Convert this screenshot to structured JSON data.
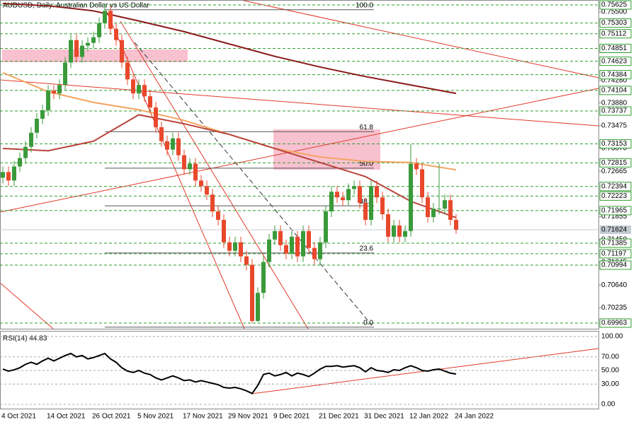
{
  "chart_data": {
    "type": "candlestick",
    "title": "AUDUSD, Daily: Australian Dollar vs US Dollar",
    "categories": [
      "4 Oct 2021",
      null,
      null,
      null,
      null,
      null,
      null,
      null,
      "14 Oct 2021",
      null,
      null,
      null,
      null,
      null,
      null,
      null,
      "26 Oct 2021",
      null,
      null,
      null,
      null,
      null,
      null,
      null,
      "5 Nov 2021",
      null,
      null,
      null,
      null,
      null,
      null,
      null,
      "17 Nov 2021",
      null,
      null,
      null,
      null,
      null,
      null,
      null,
      "29 Nov 2021",
      null,
      null,
      null,
      null,
      null,
      null,
      null,
      "9 Dec 2021",
      null,
      null,
      null,
      null,
      null,
      null,
      null,
      "21 Dec 2021",
      null,
      null,
      null,
      null,
      null,
      null,
      null,
      "31 Dec 2021",
      null,
      null,
      null,
      null,
      null,
      null,
      null,
      "12 Jan 2022",
      null,
      null,
      null,
      null,
      null,
      null,
      null,
      "24 Jan 2022"
    ],
    "open": [
      0.7255,
      0.7265,
      0.725,
      0.7275,
      0.729,
      0.731,
      0.7335,
      0.736,
      0.7375,
      0.741,
      0.7405,
      0.742,
      0.746,
      0.75,
      0.747,
      0.749,
      0.7495,
      0.7505,
      0.753,
      0.7552,
      0.752,
      0.75,
      0.746,
      0.743,
      0.7405,
      0.742,
      0.74,
      0.738,
      0.7345,
      0.732,
      0.7305,
      0.7325,
      0.7295,
      0.727,
      0.728,
      0.725,
      0.724,
      0.7225,
      0.7195,
      0.718,
      0.714,
      0.7125,
      0.714,
      0.7115,
      0.71,
      0.7,
      0.705,
      0.7105,
      0.7145,
      0.716,
      0.7135,
      0.712,
      0.715,
      0.7115,
      0.716,
      0.713,
      0.711,
      0.714,
      0.7195,
      0.723,
      0.722,
      0.7215,
      0.7235,
      0.724,
      0.721,
      0.718,
      0.724,
      0.722,
      0.719,
      0.715,
      0.717,
      0.715,
      0.716,
      0.728,
      0.727,
      0.722,
      0.7185,
      0.72,
      0.72,
      0.7215,
      0.718
    ],
    "high": [
      0.7275,
      0.7275,
      0.7285,
      0.73,
      0.732,
      0.7345,
      0.737,
      0.7385,
      0.742,
      0.742,
      0.743,
      0.747,
      0.751,
      0.751,
      0.75,
      0.7505,
      0.7515,
      0.754,
      0.7562,
      0.7562,
      0.753,
      0.751,
      0.747,
      0.744,
      0.743,
      0.743,
      0.741,
      0.739,
      0.7355,
      0.733,
      0.7335,
      0.7335,
      0.7305,
      0.729,
      0.729,
      0.726,
      0.725,
      0.7235,
      0.7205,
      0.719,
      0.715,
      0.715,
      0.715,
      0.7125,
      0.711,
      0.706,
      0.7115,
      0.7155,
      0.717,
      0.717,
      0.7145,
      0.716,
      0.716,
      0.717,
      0.717,
      0.714,
      0.715,
      0.7205,
      0.724,
      0.724,
      0.723,
      0.7245,
      0.725,
      0.725,
      0.722,
      0.725,
      0.725,
      0.723,
      0.72,
      0.718,
      0.718,
      0.717,
      0.7315,
      0.729,
      0.728,
      0.723,
      0.721,
      0.728,
      0.7225,
      0.7225,
      0.719
    ],
    "low": [
      0.7245,
      0.724,
      0.724,
      0.7265,
      0.728,
      0.73,
      0.7325,
      0.735,
      0.7365,
      0.7395,
      0.7395,
      0.741,
      0.745,
      0.746,
      0.746,
      0.748,
      0.7485,
      0.7495,
      0.752,
      0.751,
      0.749,
      0.745,
      0.742,
      0.7395,
      0.7395,
      0.739,
      0.737,
      0.7335,
      0.731,
      0.7295,
      0.7295,
      0.7285,
      0.726,
      0.726,
      0.724,
      0.723,
      0.7215,
      0.7185,
      0.717,
      0.713,
      0.7115,
      0.7115,
      0.7105,
      0.709,
      0.6996,
      0.6998,
      0.704,
      0.7095,
      0.7135,
      0.7125,
      0.711,
      0.711,
      0.7105,
      0.7105,
      0.712,
      0.71,
      0.71,
      0.713,
      0.7185,
      0.721,
      0.7205,
      0.7205,
      0.7225,
      0.72,
      0.717,
      0.717,
      0.721,
      0.718,
      0.714,
      0.714,
      0.714,
      0.714,
      0.715,
      0.726,
      0.721,
      0.7175,
      0.7175,
      0.719,
      0.719,
      0.717,
      0.7155
    ],
    "close": [
      0.7265,
      0.725,
      0.7275,
      0.729,
      0.731,
      0.7335,
      0.736,
      0.7375,
      0.741,
      0.7405,
      0.742,
      0.746,
      0.75,
      0.747,
      0.749,
      0.7495,
      0.7505,
      0.753,
      0.7552,
      0.752,
      0.75,
      0.746,
      0.743,
      0.7405,
      0.742,
      0.74,
      0.738,
      0.7345,
      0.732,
      0.7305,
      0.7325,
      0.7295,
      0.727,
      0.728,
      0.725,
      0.724,
      0.7225,
      0.7195,
      0.718,
      0.714,
      0.7125,
      0.714,
      0.7115,
      0.71,
      0.7,
      0.705,
      0.7105,
      0.7145,
      0.716,
      0.7135,
      0.712,
      0.715,
      0.7115,
      0.716,
      0.713,
      0.711,
      0.714,
      0.7195,
      0.723,
      0.722,
      0.7215,
      0.7235,
      0.724,
      0.721,
      0.718,
      0.724,
      0.722,
      0.719,
      0.715,
      0.717,
      0.715,
      0.716,
      0.728,
      0.727,
      0.722,
      0.7185,
      0.72,
      0.72,
      0.7215,
      0.718,
      0.71624
    ],
    "up_color": "#3a9a3a",
    "down_color": "#e8482c",
    "ylim": [
      0.69862,
      0.75713
    ],
    "yticks": [
      {
        "value": 0.755,
        "label": "0.75500"
      },
      {
        "value": 0.7428,
        "label": "0.74280"
      },
      {
        "value": 0.7388,
        "label": "0.73880"
      },
      0.73475,
      {
        "value": 0.7307,
        "label": "0.73070"
      },
      0.72665,
      0.71855,
      {
        "value": 0.7145,
        "label": "0.71450"
      },
      0.71045,
      {
        "value": 0.7064,
        "label": "0.70640"
      },
      0.70235
    ],
    "levels": [
      0.75625,
      0.75303,
      0.75112,
      0.74851,
      0.74623,
      0.74384,
      0.74104,
      0.73737,
      0.73153,
      0.72815,
      0.72394,
      0.72223,
      0.71965,
      0.71385,
      0.71197,
      0.70994,
      0.69963
    ],
    "level_color": "#2e9e2e",
    "current_price": 0.71624,
    "current_color": "#c3cbd3",
    "moving_averages": [
      {
        "color": "#8b1a1a",
        "x": [
          0,
          8,
          16,
          24,
          32,
          40,
          48,
          56,
          64,
          72,
          80
        ],
        "values": [
          0.7565,
          0.7561,
          0.7552,
          0.7534,
          0.7515,
          0.7493,
          0.7471,
          0.7452,
          0.7435,
          0.742,
          0.7405
        ]
      },
      {
        "color": "#f4a460",
        "x": [
          0,
          8,
          16,
          24,
          32,
          40,
          48,
          56,
          64,
          72,
          80
        ],
        "values": [
          0.7442,
          0.7408,
          0.7389,
          0.7376,
          0.7357,
          0.7332,
          0.7307,
          0.7292,
          0.7284,
          0.7282,
          0.7269
        ]
      },
      {
        "color": "#b8433a",
        "x": [
          0,
          8,
          16,
          24,
          32,
          40,
          48,
          56,
          64,
          72,
          80
        ],
        "values": [
          0.7307,
          0.7303,
          0.732,
          0.7367,
          0.7351,
          0.7332,
          0.7307,
          0.7282,
          0.7257,
          0.7213,
          0.7184
        ]
      }
    ],
    "fibonacci": {
      "levels": [
        "100.0",
        "61.8",
        "50.0",
        "38.2",
        "23.6",
        "0.0"
      ],
      "prices": [
        0.7554,
        0.7337,
        0.7272,
        0.7205,
        0.7121,
        0.6989
      ],
      "color": "#555555"
    },
    "rsi": {
      "title": "RSI(14) 44.83",
      "values": [
        52,
        49,
        51,
        54,
        59,
        62,
        59,
        64,
        68,
        64,
        68,
        72,
        75,
        70,
        72,
        67,
        69,
        72,
        75,
        67,
        62,
        54,
        49,
        47,
        50,
        46,
        44,
        39,
        36,
        39,
        42,
        39,
        35,
        36,
        33,
        35,
        33,
        31,
        29,
        25,
        24,
        25,
        23,
        20,
        16,
        28,
        44,
        46,
        42,
        44,
        47,
        42,
        46,
        44,
        41,
        46,
        52,
        56,
        56,
        57,
        55,
        56,
        57,
        54,
        48,
        54,
        50,
        49,
        47,
        51,
        50,
        54,
        57,
        54,
        50,
        49,
        51,
        52,
        49,
        46,
        44.83
      ],
      "color": "#000000",
      "ylim": [
        -6.25,
        106.25
      ],
      "yticks": [
        {
          "value": 100,
          "label": "100.00"
        },
        {
          "value": 70,
          "label": "70.00"
        },
        {
          "value": 50,
          "label": "50.00"
        },
        {
          "value": 30,
          "label": "30.00"
        },
        {
          "value": 0,
          "label": "0.00"
        }
      ]
    }
  }
}
